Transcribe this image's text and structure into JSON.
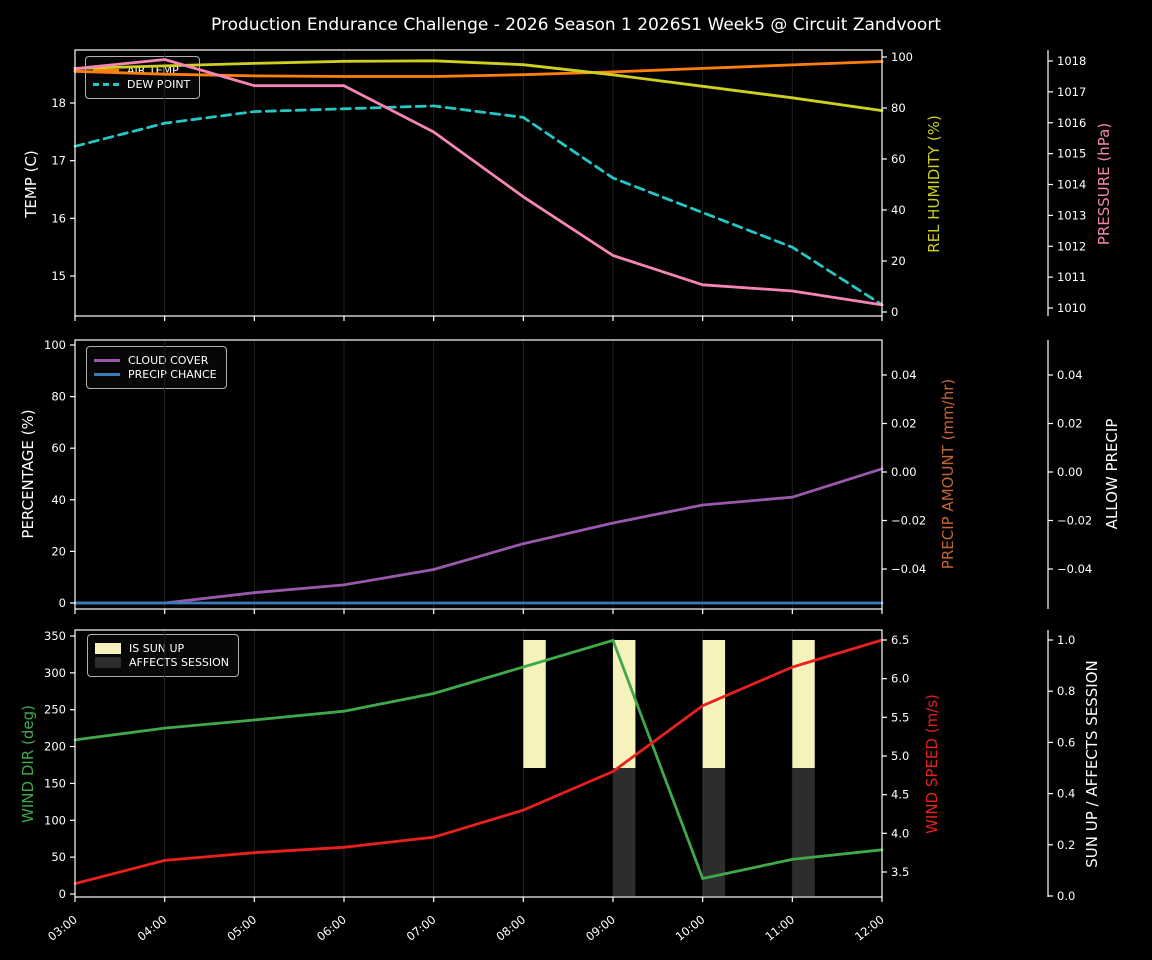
{
  "title": "Production Endurance Challenge - 2026 Season 1 2026S1 Week5 @ Circuit Zandvoort",
  "x_labels": [
    "03:00",
    "04:00",
    "05:00",
    "06:00",
    "07:00",
    "08:00",
    "09:00",
    "10:00",
    "11:00",
    "12:00"
  ],
  "colors": {
    "background": "#000000",
    "text": "#ffffff",
    "spine": "#ffffff",
    "gridline": "#1f1f1f",
    "air_temp": "#ff7f0e",
    "dew_point": "#26c6c6",
    "rel_humidity": "#cfcf1f",
    "pressure": "#f585b5",
    "cloud_cover": "#9a58ac",
    "precip_chance": "#3d7ab8",
    "precip_amount": "#c46536",
    "wind_dir": "#3fa84c",
    "wind_speed": "#e8201e",
    "sun_up_bar": "#f6f2bb",
    "affects_session_bar": "#2d2d2d"
  },
  "chart_data": [
    {
      "type": "line",
      "x": [
        "03:00",
        "04:00",
        "05:00",
        "06:00",
        "07:00",
        "08:00",
        "09:00",
        "10:00",
        "11:00",
        "12:00"
      ],
      "axes": {
        "left": {
          "label": "TEMP (C)",
          "color": "#ffffff",
          "ticks": [
            [
              15,
              "15"
            ],
            [
              16,
              "16"
            ],
            [
              17,
              "17"
            ],
            [
              18,
              "18"
            ]
          ]
        },
        "right1": {
          "label": "REL HUMIDITY (%)",
          "color": "#cfcf1f",
          "ticks": [
            [
              0,
              "0"
            ],
            [
              20,
              "20"
            ],
            [
              40,
              "40"
            ],
            [
              60,
              "60"
            ],
            [
              80,
              "80"
            ],
            [
              100,
              "100"
            ]
          ]
        },
        "right2": {
          "label": "PRESSURE (hPa)",
          "color": "#f585b5",
          "ticks": [
            [
              1010,
              "1010"
            ],
            [
              1011,
              "1011"
            ],
            [
              1012,
              "1012"
            ],
            [
              1013,
              "1013"
            ],
            [
              1014,
              "1014"
            ],
            [
              1015,
              "1015"
            ],
            [
              1016,
              "1016"
            ],
            [
              1017,
              "1017"
            ],
            [
              1018,
              "1018"
            ]
          ]
        }
      },
      "series": [
        {
          "name": "AIR TEMP",
          "axis": "left",
          "color": "#ff7f0e",
          "style": "solid",
          "values": [
            18.55,
            18.5,
            18.47,
            18.46,
            18.46,
            18.49,
            18.54,
            18.6,
            18.66,
            18.72
          ]
        },
        {
          "name": "DEW POINT",
          "axis": "left",
          "color": "#26c6c6",
          "style": "dashed",
          "values": [
            17.25,
            17.65,
            17.85,
            17.9,
            17.95,
            17.75,
            16.7,
            16.1,
            15.5,
            14.5
          ]
        },
        {
          "name": "REL HUMIDITY",
          "axis": "right1",
          "color": "#cfcf1f",
          "style": "solid",
          "values": [
            95.5,
            96.5,
            97.5,
            98.3,
            98.5,
            97,
            93,
            88.5,
            84,
            79
          ]
        },
        {
          "name": "PRESSURE",
          "axis": "right2",
          "color": "#f585b5",
          "style": "solid",
          "values": [
            1017.75,
            1018.05,
            1017.2,
            1017.2,
            1015.7,
            1013.6,
            1011.7,
            1010.75,
            1010.55,
            1010.1
          ]
        }
      ],
      "legend": [
        {
          "label": "AIR TEMP",
          "color": "#ff7f0e",
          "swatch": "line"
        },
        {
          "label": "DEW POINT",
          "color": "#26c6c6",
          "swatch": "dashed-line"
        }
      ]
    },
    {
      "type": "line",
      "x": [
        "03:00",
        "04:00",
        "05:00",
        "06:00",
        "07:00",
        "08:00",
        "09:00",
        "10:00",
        "11:00",
        "12:00"
      ],
      "axes": {
        "left": {
          "label": "PERCENTAGE (%)",
          "color": "#ffffff",
          "ticks": [
            [
              0,
              "0"
            ],
            [
              20,
              "20"
            ],
            [
              40,
              "40"
            ],
            [
              60,
              "60"
            ],
            [
              80,
              "80"
            ],
            [
              100,
              "100"
            ]
          ]
        },
        "right1": {
          "label": "PRECIP AMOUNT (mm/hr)",
          "color": "#c46536",
          "ticks": [
            [
              -0.04,
              "−0.04"
            ],
            [
              -0.02,
              "−0.02"
            ],
            [
              0,
              "0.00"
            ],
            [
              0.02,
              "0.02"
            ],
            [
              0.04,
              "0.04"
            ]
          ]
        },
        "right2": {
          "label": "ALLOW PRECIP",
          "color": "#ffffff",
          "ticks": [
            [
              -0.04,
              "−0.04"
            ],
            [
              -0.02,
              "−0.02"
            ],
            [
              0,
              "0.00"
            ],
            [
              0.02,
              "0.02"
            ],
            [
              0.04,
              "0.04"
            ]
          ]
        }
      },
      "series": [
        {
          "name": "CLOUD COVER",
          "axis": "left",
          "color": "#9a58ac",
          "style": "solid",
          "values": [
            0,
            0,
            4,
            7,
            13,
            23,
            31,
            38,
            41,
            52
          ]
        },
        {
          "name": "PRECIP CHANCE",
          "axis": "left",
          "color": "#3d7ab8",
          "style": "solid",
          "values": [
            0,
            0,
            0,
            0,
            0,
            0,
            0,
            0,
            0,
            0
          ]
        },
        {
          "name": "PRECIP AMOUNT",
          "axis": "right1",
          "color": "#c46536",
          "style": "solid",
          "visible": false,
          "values": [
            0,
            0,
            0,
            0,
            0,
            0,
            0,
            0,
            0,
            0
          ]
        },
        {
          "name": "ALLOW PRECIP",
          "axis": "right2",
          "color": "#ffffff",
          "style": "solid",
          "visible": false,
          "values": [
            0,
            0,
            0,
            0,
            0,
            0,
            0,
            0,
            0,
            0
          ]
        }
      ],
      "legend": [
        {
          "label": "CLOUD COVER",
          "color": "#9a58ac",
          "swatch": "line"
        },
        {
          "label": "PRECIP CHANCE",
          "color": "#3d7ab8",
          "swatch": "line"
        }
      ]
    },
    {
      "type": "line+bar",
      "x": [
        "03:00",
        "04:00",
        "05:00",
        "06:00",
        "07:00",
        "08:00",
        "09:00",
        "10:00",
        "11:00",
        "12:00"
      ],
      "axes": {
        "left": {
          "label": "WIND DIR (deg)",
          "color": "#3fa84c",
          "ticks": [
            [
              0,
              "0"
            ],
            [
              50,
              "50"
            ],
            [
              100,
              "100"
            ],
            [
              150,
              "150"
            ],
            [
              200,
              "200"
            ],
            [
              250,
              "250"
            ],
            [
              300,
              "300"
            ],
            [
              350,
              "350"
            ]
          ]
        },
        "right1": {
          "label": "WIND SPEED (m/s)",
          "color": "#e8201e",
          "ticks": [
            [
              3.5,
              "3.5"
            ],
            [
              4,
              "4.0"
            ],
            [
              4.5,
              "4.5"
            ],
            [
              5,
              "5.0"
            ],
            [
              5.5,
              "5.5"
            ],
            [
              6,
              "6.0"
            ],
            [
              6.5,
              "6.5"
            ]
          ]
        },
        "right2": {
          "label": "SUN UP / AFFECTS SESSION",
          "color": "#ffffff",
          "ticks": [
            [
              0,
              "0.0"
            ],
            [
              0.2,
              "0.2"
            ],
            [
              0.4,
              "0.4"
            ],
            [
              0.6,
              "0.6"
            ],
            [
              0.8,
              "0.8"
            ],
            [
              1,
              "1.0"
            ]
          ]
        }
      },
      "bars": [
        {
          "name": "IS SUN UP",
          "axis": "right2",
          "color": "#f6f2bb",
          "hours": [
            "08:00",
            "09:00",
            "10:00",
            "11:00"
          ],
          "from": 0.5,
          "to": 1.0,
          "width_hours": 0.25
        },
        {
          "name": "AFFECTS SESSION",
          "axis": "right2",
          "color": "#2d2d2d",
          "hours": [
            "09:00",
            "10:00",
            "11:00"
          ],
          "from": 0.0,
          "to": 0.5,
          "width_hours": 0.25
        }
      ],
      "series": [
        {
          "name": "WIND DIR",
          "axis": "left",
          "color": "#3fa84c",
          "style": "solid",
          "values": [
            209,
            225,
            236,
            248,
            272,
            308,
            344,
            21,
            47,
            60
          ]
        },
        {
          "name": "WIND SPEED",
          "axis": "right1",
          "color": "#e8201e",
          "style": "solid",
          "values": [
            3.35,
            3.65,
            3.75,
            3.82,
            3.95,
            4.3,
            4.8,
            5.65,
            6.15,
            6.5
          ]
        }
      ],
      "legend": [
        {
          "label": "IS SUN UP",
          "color": "#f6f2bb",
          "swatch": "patch"
        },
        {
          "label": "AFFECTS SESSION",
          "color": "#2d2d2d",
          "swatch": "patch"
        }
      ]
    }
  ]
}
